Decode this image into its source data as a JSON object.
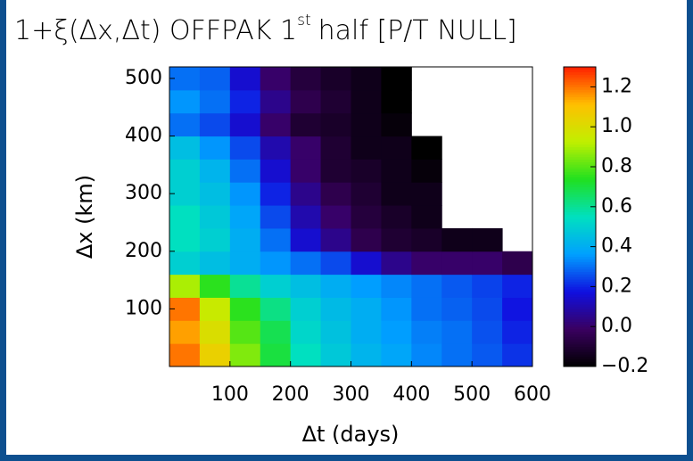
{
  "chart_data": {
    "type": "heatmap",
    "title": {
      "main": "1+ξ(Δx,Δt) OFFPAK 1",
      "superscript": "st",
      "rest": "half [P/T NULL]"
    },
    "x_label": "Δt (days)",
    "y_label": "Δx (km)",
    "xlim": [
      0,
      600
    ],
    "xticks": [
      100,
      200,
      300,
      400,
      500,
      600
    ],
    "ylim": [
      0,
      520
    ],
    "yticks": [
      100,
      200,
      300,
      400,
      500
    ],
    "z": [
      [
        1.2,
        1.05,
        0.85,
        0.7,
        0.55,
        0.48,
        0.42,
        0.38,
        0.33,
        0.3,
        0.27,
        0.22
      ],
      [
        1.15,
        1.0,
        0.8,
        0.68,
        0.52,
        0.46,
        0.4,
        0.36,
        0.32,
        0.3,
        0.26,
        0.2
      ],
      [
        1.2,
        0.95,
        0.75,
        0.62,
        0.5,
        0.44,
        0.4,
        0.35,
        0.3,
        0.28,
        0.25,
        0.18
      ],
      [
        0.9,
        0.75,
        0.6,
        0.5,
        0.45,
        0.4,
        0.36,
        0.33,
        0.3,
        0.27,
        0.24,
        0.2
      ],
      [
        0.5,
        0.45,
        0.4,
        0.35,
        0.3,
        0.25,
        0.15,
        0.05,
        0.0,
        0.0,
        0.0,
        -0.05
      ],
      [
        0.55,
        0.5,
        0.4,
        0.3,
        0.15,
        0.05,
        -0.05,
        -0.1,
        -0.12,
        -0.15,
        -0.15,
        null
      ],
      [
        0.55,
        0.48,
        0.38,
        0.25,
        0.1,
        0.0,
        -0.08,
        -0.12,
        -0.15,
        null,
        null,
        null
      ],
      [
        0.5,
        0.45,
        0.35,
        0.2,
        0.05,
        -0.05,
        -0.1,
        -0.15,
        -0.15,
        null,
        null,
        null
      ],
      [
        0.5,
        0.42,
        0.3,
        0.15,
        0.0,
        -0.1,
        -0.12,
        -0.15,
        -0.18,
        null,
        null,
        null
      ],
      [
        0.45,
        0.35,
        0.25,
        0.1,
        0.0,
        -0.1,
        -0.15,
        -0.15,
        -0.2,
        null,
        null,
        null
      ],
      [
        0.3,
        0.25,
        0.15,
        0.0,
        -0.1,
        -0.12,
        -0.15,
        -0.18,
        null,
        null,
        null,
        null
      ],
      [
        0.35,
        0.3,
        0.2,
        0.05,
        -0.05,
        -0.1,
        -0.15,
        -0.2,
        null,
        null,
        null,
        null
      ],
      [
        0.3,
        0.28,
        0.15,
        0.0,
        -0.08,
        -0.12,
        -0.15,
        -0.2,
        null,
        null,
        null,
        null
      ]
    ],
    "zlim": [
      -0.2,
      1.3
    ],
    "zticks": [
      {
        "value": -0.2,
        "label": "−0.2"
      },
      {
        "value": 0,
        "label": "0.0"
      },
      0.2,
      0.4,
      0.6,
      0.8,
      {
        "value": 1,
        "label": "1.0"
      },
      1.2
    ],
    "colormap": [
      "#000000",
      "#3a0060",
      "#1010e0",
      "#00a0ff",
      "#00e0c0",
      "#20e020",
      "#c0f000",
      "#ffc000",
      "#ff2000"
    ],
    "frame_color": "#0d4f8f"
  }
}
